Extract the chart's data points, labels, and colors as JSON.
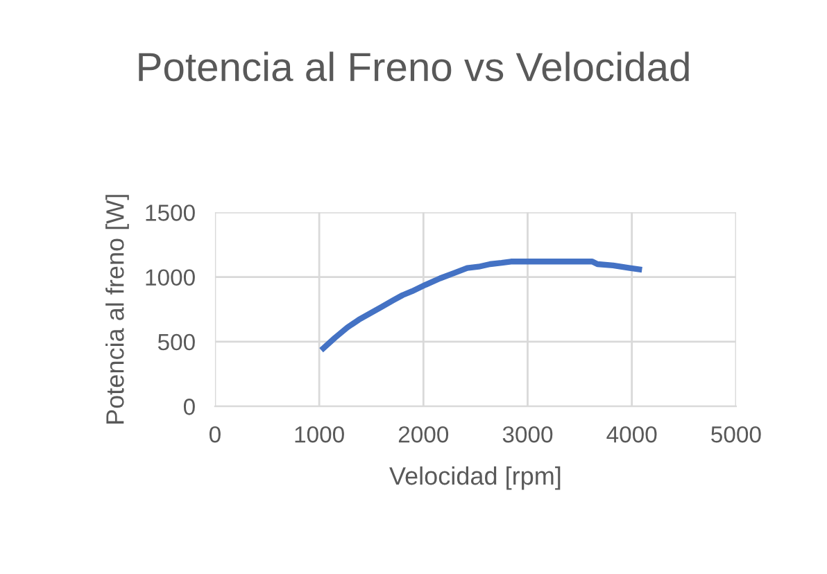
{
  "chart_data": {
    "type": "line",
    "title": "Potencia al Freno vs Velocidad",
    "xlabel": "Velocidad [rpm]",
    "ylabel": "Potencia al freno [W]",
    "series": [
      {
        "color": "#4472c4",
        "x": [
          1040,
          1150,
          1270,
          1380,
          1490,
          1600,
          1710,
          1800,
          1890,
          2020,
          2160,
          2290,
          2420,
          2530,
          2640,
          2750,
          2840,
          3000,
          3200,
          3400,
          3620,
          3670,
          3820,
          3980,
          4070
        ],
        "values": [
          450,
          530,
          610,
          670,
          720,
          770,
          820,
          860,
          890,
          940,
          990,
          1030,
          1070,
          1080,
          1100,
          1110,
          1120,
          1120,
          1120,
          1120,
          1120,
          1100,
          1090,
          1070,
          1060
        ]
      }
    ],
    "xlim": [
      0,
      5000
    ],
    "xticks": [
      0,
      1000,
      2000,
      3000,
      4000,
      5000
    ],
    "ylim": [
      0,
      1500
    ],
    "yticks": [
      0,
      500,
      1000,
      1500
    ],
    "grid": true,
    "marker": "none",
    "line_style": "solid"
  }
}
